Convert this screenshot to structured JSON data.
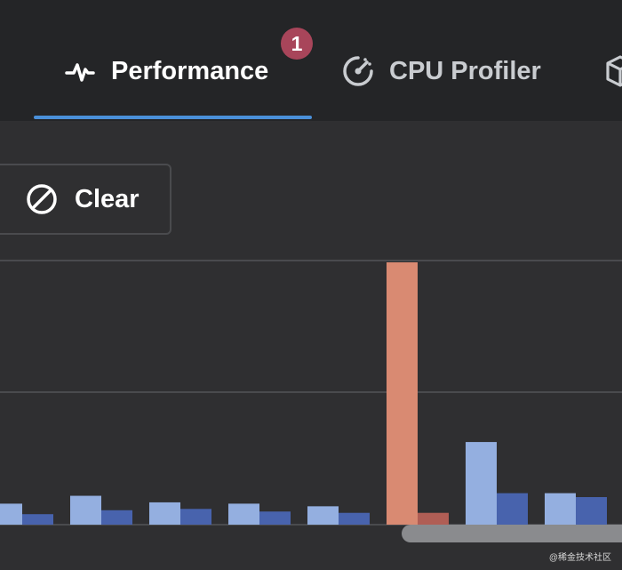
{
  "tabs": [
    {
      "label": "Performance",
      "icon": "pulse-icon",
      "active": true
    },
    {
      "label": "CPU Profiler",
      "icon": "gauge-icon",
      "active": false
    },
    {
      "label": "",
      "icon": "cube-icon",
      "active": false
    }
  ],
  "badge": {
    "count": "1"
  },
  "toolbar": {
    "clear_label": "Clear",
    "clear_icon": "block-icon"
  },
  "colors": {
    "accent": "#4a90d9",
    "badge": "#a8455a",
    "bar_light": "#94afe0",
    "bar_dark": "#4863ad",
    "bar_spike": "#d98a72",
    "bar_spike_secondary": "#b05e55"
  },
  "chart_data": {
    "type": "bar",
    "title": "",
    "xlabel": "",
    "ylabel": "",
    "grid": true,
    "ylim": [
      0,
      100
    ],
    "series": [
      {
        "values": [
          8,
          11,
          8.5,
          8,
          7,
          100,
          31.5,
          12
        ]
      },
      {
        "values": [
          4,
          5.5,
          6,
          5,
          4.5,
          4.5,
          12,
          10.5
        ]
      }
    ],
    "highlight_index": 5
  },
  "watermark": "@稀金技术社区"
}
